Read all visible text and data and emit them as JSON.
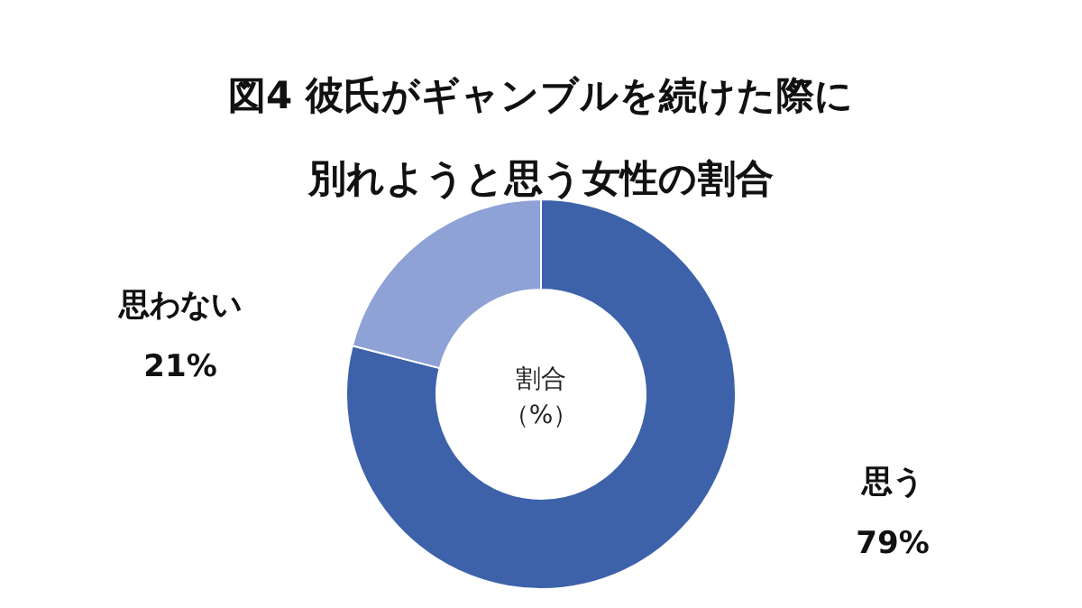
{
  "chart_data": {
    "type": "donut",
    "title": "図4 彼氏がギャンブルを続けた際に別れようと思う女性の割合",
    "categories": [
      "思う",
      "思わない"
    ],
    "values": [
      79,
      21
    ],
    "value_labels": [
      "79%",
      "21%"
    ],
    "colors": [
      "#3d62aa",
      "#8ea2d6"
    ],
    "annotations": [
      "割合（%）"
    ],
    "legend": false
  }
}
